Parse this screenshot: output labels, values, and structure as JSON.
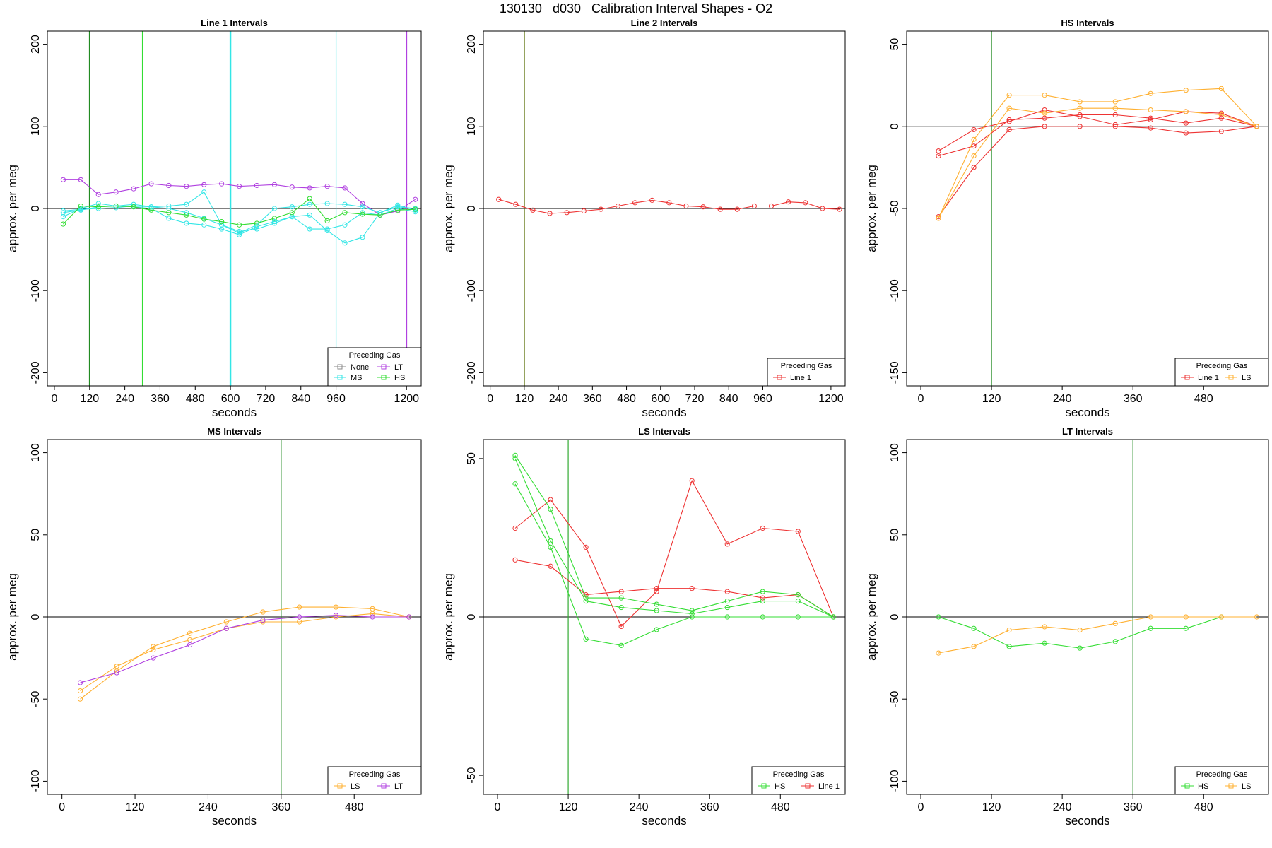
{
  "figure": {
    "title": "130130   d030   Calibration Interval Shapes - O2"
  },
  "chart_data": [
    {
      "type": "line",
      "title": "Line 1 Intervals",
      "xlabel": "seconds",
      "ylabel": "approx. per meg",
      "xlim": [
        -24,
        1250
      ],
      "ylim": [
        -216,
        216
      ],
      "xticks": [
        0,
        120,
        240,
        360,
        480,
        600,
        720,
        840,
        960,
        1200
      ],
      "xtick_labels": [
        "0",
        "120",
        "240",
        "360",
        "480",
        "600",
        "720",
        "840",
        "960",
        "1200"
      ],
      "yticks": [
        -200,
        -100,
        0,
        100,
        200
      ],
      "ytick_labels": [
        "-200",
        "-100",
        "0",
        "100",
        "200"
      ],
      "vlines": [
        {
          "x": 120,
          "color": "#228b22",
          "width": 1.8
        },
        {
          "x": 300,
          "color": "#33dd33",
          "width": 1.2
        },
        {
          "x": 600,
          "color": "#33e6e6",
          "width": 2.4
        },
        {
          "x": 960,
          "color": "#33e6e6",
          "width": 1.2
        },
        {
          "x": 1200,
          "color": "#b040e0",
          "width": 1.8
        }
      ],
      "legend": {
        "title": "Preceding Gas",
        "position": "bottom-right",
        "columns": 2,
        "entries": [
          {
            "label": "None",
            "color": "#888888"
          },
          {
            "label": "LT",
            "color": "#b040e0"
          },
          {
            "label": "MS",
            "color": "#33e6e6"
          },
          {
            "label": "HS",
            "color": "#33dd33"
          }
        ]
      },
      "series": [
        {
          "color": "#b040e0",
          "x": [
            30,
            90,
            150,
            210,
            270,
            330,
            390,
            450,
            510,
            570,
            630,
            690,
            750,
            810,
            870,
            930,
            990,
            1050,
            1110,
            1170,
            1230
          ],
          "y": [
            35,
            35,
            17,
            20,
            24,
            30,
            28,
            27,
            29,
            30,
            27,
            28,
            29,
            26,
            25,
            27,
            25,
            6,
            -8,
            -3,
            11
          ]
        },
        {
          "color": "#33e6e6",
          "x": [
            30,
            90,
            150,
            210,
            270,
            330,
            390,
            450,
            510,
            570,
            630,
            690,
            750,
            810,
            870,
            930,
            990,
            1050,
            1110,
            1170,
            1230
          ],
          "y": [
            -10,
            0,
            6,
            3,
            5,
            2,
            3,
            5,
            20,
            -20,
            -30,
            -20,
            0,
            2,
            5,
            6,
            5,
            2,
            -5,
            4,
            -2
          ]
        },
        {
          "color": "#33e6e6",
          "x": [
            30,
            90,
            150,
            210,
            270,
            330,
            390,
            450,
            510,
            570,
            630,
            690,
            750,
            810,
            870,
            930,
            990,
            1050,
            1110,
            1170,
            1230
          ],
          "y": [
            -5,
            -2,
            2,
            3,
            2,
            0,
            -12,
            -18,
            -20,
            -25,
            -32,
            -22,
            -16,
            -10,
            -8,
            -27,
            -42,
            -35,
            -5,
            2,
            0
          ]
        },
        {
          "color": "#33e6e6",
          "x": [
            30,
            90,
            150,
            210,
            270,
            330,
            390,
            450,
            510,
            570,
            630,
            690,
            750,
            810,
            870,
            930,
            990,
            1050,
            1110,
            1170,
            1230
          ],
          "y": [
            -3,
            -1,
            0,
            1,
            3,
            2,
            0,
            -5,
            -12,
            -20,
            -28,
            -25,
            -18,
            -10,
            -25,
            -25,
            -20,
            -5,
            -8,
            0,
            -4
          ]
        },
        {
          "color": "#33dd33",
          "x": [
            30,
            90,
            150,
            210,
            270,
            330,
            390,
            450,
            510,
            570,
            630,
            690,
            750,
            810,
            870,
            930,
            990,
            1050,
            1110,
            1170,
            1230
          ],
          "y": [
            -19,
            3,
            2,
            3,
            2,
            -2,
            -5,
            -8,
            -13,
            -16,
            -20,
            -18,
            -12,
            -5,
            12,
            -15,
            -5,
            -7,
            -8,
            -2,
            -1
          ]
        }
      ]
    },
    {
      "type": "line",
      "title": "Line 2 Intervals",
      "xlabel": "seconds",
      "ylabel": "approx. per meg",
      "xlim": [
        -24,
        1250
      ],
      "ylim": [
        -216,
        216
      ],
      "xticks": [
        0,
        120,
        240,
        360,
        480,
        600,
        720,
        840,
        960,
        1200
      ],
      "xtick_labels": [
        "0",
        "120",
        "240",
        "360",
        "480",
        "600",
        "720",
        "840",
        "960",
        "1200"
      ],
      "yticks": [
        -200,
        -100,
        0,
        100,
        200
      ],
      "ytick_labels": [
        "-200",
        "-100",
        "0",
        "100",
        "200"
      ],
      "vlines": [
        {
          "x": 120,
          "color": "#556b00",
          "width": 1.5
        }
      ],
      "legend": {
        "title": "Preceding Gas",
        "position": "bottom-right",
        "columns": 1,
        "entries": [
          {
            "label": "Line 1",
            "color": "#ee3333"
          }
        ]
      },
      "series": [
        {
          "color": "#ee3333",
          "x": [
            30,
            90,
            150,
            210,
            270,
            330,
            390,
            450,
            510,
            570,
            630,
            690,
            750,
            810,
            870,
            930,
            990,
            1050,
            1110,
            1170,
            1230
          ],
          "y": [
            11,
            5,
            -2,
            -6,
            -5,
            -3,
            -1,
            3,
            7,
            10,
            7,
            3,
            2,
            -1,
            -1,
            3,
            3,
            8,
            7,
            0,
            -1
          ]
        }
      ]
    },
    {
      "type": "line",
      "title": "HS Intervals",
      "xlabel": "seconds",
      "ylabel": "approx. per meg",
      "xlim": [
        -24,
        590
      ],
      "ylim": [
        -158,
        58
      ],
      "xticks": [
        0,
        120,
        240,
        360,
        480
      ],
      "xtick_labels": [
        "0",
        "120",
        "240",
        "360",
        "480"
      ],
      "yticks": [
        -150,
        -100,
        -50,
        0,
        50
      ],
      "ytick_labels": [
        "-150",
        "-100",
        "-50",
        "0",
        "50"
      ],
      "vlines": [
        {
          "x": 120,
          "color": "#228b22",
          "width": 1.2
        }
      ],
      "legend": {
        "title": "Preceding Gas",
        "position": "bottom-right",
        "columns": 2,
        "entries": [
          {
            "label": "Line 1",
            "color": "#ee3333"
          },
          {
            "label": "LS",
            "color": "#ffb030"
          }
        ]
      },
      "series": [
        {
          "color": "#ee3333",
          "x": [
            30,
            90,
            150,
            210,
            270,
            330,
            390,
            450,
            510,
            570
          ],
          "y": [
            -15,
            -2,
            3,
            10,
            6,
            1,
            4,
            9,
            8,
            0
          ]
        },
        {
          "color": "#ee3333",
          "x": [
            30,
            90,
            150,
            210,
            270,
            330,
            390,
            450,
            510,
            570
          ],
          "y": [
            -18,
            -12,
            4,
            5,
            7,
            7,
            5,
            2,
            5,
            0
          ]
        },
        {
          "color": "#ee3333",
          "x": [
            30,
            90,
            150,
            210,
            270,
            330,
            390,
            450,
            510,
            570
          ],
          "y": [
            -55,
            -25,
            -2,
            0,
            0,
            0,
            -1,
            -4,
            -3,
            0
          ]
        },
        {
          "color": "#ffb030",
          "x": [
            30,
            90,
            150,
            210,
            270,
            330,
            390,
            450,
            510,
            570
          ],
          "y": [
            -56,
            -8,
            19,
            19,
            15,
            15,
            20,
            22,
            23,
            0
          ]
        },
        {
          "color": "#ffb030",
          "x": [
            30,
            90,
            150,
            210,
            270,
            330,
            390,
            450,
            510,
            570
          ],
          "y": [
            -56,
            -18,
            11,
            8,
            11,
            11,
            10,
            9,
            7,
            0
          ]
        }
      ]
    },
    {
      "type": "line",
      "title": "MS Intervals",
      "xlabel": "seconds",
      "ylabel": "approx. per meg",
      "xlim": [
        -24,
        590
      ],
      "ylim": [
        -108,
        108
      ],
      "xticks": [
        0,
        120,
        240,
        360,
        480
      ],
      "xtick_labels": [
        "0",
        "120",
        "240",
        "360",
        "480"
      ],
      "yticks": [
        -100,
        -50,
        0,
        50,
        100
      ],
      "ytick_labels": [
        "-100",
        "-50",
        "0",
        "50",
        "100"
      ],
      "vlines": [
        {
          "x": 360,
          "color": "#228b22",
          "width": 1.2
        }
      ],
      "legend": {
        "title": "Preceding Gas",
        "position": "bottom-right",
        "columns": 2,
        "entries": [
          {
            "label": "LS",
            "color": "#ffb030"
          },
          {
            "label": "LT",
            "color": "#b040e0"
          }
        ]
      },
      "series": [
        {
          "color": "#ffb030",
          "x": [
            30,
            90,
            150,
            210,
            270,
            330,
            390,
            450,
            510,
            570
          ],
          "y": [
            -50,
            -33,
            -18,
            -10,
            -3,
            3,
            6,
            6,
            5,
            0
          ]
        },
        {
          "color": "#ffb030",
          "x": [
            30,
            90,
            150,
            210,
            270,
            330,
            390,
            450,
            510,
            570
          ],
          "y": [
            -45,
            -30,
            -20,
            -14,
            -7,
            -3,
            -3,
            0,
            2,
            0
          ]
        },
        {
          "color": "#b040e0",
          "x": [
            30,
            90,
            150,
            210,
            270,
            330,
            390,
            450,
            510,
            570
          ],
          "y": [
            -40,
            -34,
            -25,
            -17,
            -7,
            -2,
            0,
            1,
            0,
            0
          ]
        }
      ]
    },
    {
      "type": "line",
      "title": "LS Intervals",
      "xlabel": "seconds",
      "ylabel": "approx. per meg",
      "xlim": [
        -24,
        590
      ],
      "ylim": [
        -56,
        56
      ],
      "xticks": [
        0,
        120,
        240,
        360,
        480
      ],
      "xtick_labels": [
        "0",
        "120",
        "240",
        "360",
        "480"
      ],
      "yticks": [
        -50,
        0,
        50
      ],
      "ytick_labels": [
        "-50",
        "0",
        "50"
      ],
      "vlines": [
        {
          "x": 120,
          "color": "#33aa33",
          "width": 1.2
        }
      ],
      "legend": {
        "title": "Preceding Gas",
        "position": "bottom-right",
        "columns": 2,
        "entries": [
          {
            "label": "HS",
            "color": "#33dd33"
          },
          {
            "label": "Line 1",
            "color": "#ee3333"
          }
        ]
      },
      "series": [
        {
          "color": "#ee3333",
          "x": [
            30,
            90,
            150,
            210,
            270,
            330,
            390,
            450,
            510,
            570
          ],
          "y": [
            28,
            37,
            22,
            -3,
            8,
            43,
            23,
            28,
            27,
            0
          ]
        },
        {
          "color": "#ee3333",
          "x": [
            30,
            90,
            150,
            210,
            270,
            330,
            390,
            450,
            510,
            570
          ],
          "y": [
            18,
            16,
            7,
            8,
            9,
            9,
            8,
            6,
            7,
            0
          ]
        },
        {
          "color": "#33dd33",
          "x": [
            30,
            90,
            150,
            210,
            270,
            330,
            390,
            450,
            510,
            570
          ],
          "y": [
            51,
            34,
            6,
            6,
            4,
            2,
            5,
            8,
            7,
            0
          ]
        },
        {
          "color": "#33dd33",
          "x": [
            30,
            90,
            150,
            210,
            270,
            330,
            390,
            450,
            510,
            570
          ],
          "y": [
            50,
            24,
            5,
            3,
            2,
            1,
            3,
            5,
            5,
            0
          ]
        },
        {
          "color": "#33dd33",
          "x": [
            30,
            90,
            150,
            210,
            270,
            330,
            390,
            450,
            510,
            570
          ],
          "y": [
            42,
            22,
            -7,
            -9,
            -4,
            0,
            0,
            0,
            0,
            0
          ]
        }
      ]
    },
    {
      "type": "line",
      "title": "LT Intervals",
      "xlabel": "seconds",
      "ylabel": "approx. per meg",
      "xlim": [
        -24,
        590
      ],
      "ylim": [
        -108,
        108
      ],
      "xticks": [
        0,
        120,
        240,
        360,
        480
      ],
      "xtick_labels": [
        "0",
        "120",
        "240",
        "360",
        "480"
      ],
      "yticks": [
        -100,
        -50,
        0,
        50,
        100
      ],
      "ytick_labels": [
        "-100",
        "-50",
        "0",
        "50",
        "100"
      ],
      "vlines": [
        {
          "x": 360,
          "color": "#228b22",
          "width": 1.2
        }
      ],
      "legend": {
        "title": "Preceding Gas",
        "position": "bottom-right",
        "columns": 2,
        "entries": [
          {
            "label": "HS",
            "color": "#33dd33"
          },
          {
            "label": "LS",
            "color": "#ffb030"
          }
        ]
      },
      "series": [
        {
          "color": "#33dd33",
          "x": [
            30,
            90,
            150,
            210,
            270,
            330,
            390,
            450,
            510
          ],
          "y": [
            0,
            -7,
            -18,
            -16,
            -19,
            -15,
            -7,
            -7,
            0
          ]
        },
        {
          "color": "#ffb030",
          "x": [
            30,
            90,
            150,
            210,
            270,
            330,
            390,
            450,
            510,
            570
          ],
          "y": [
            -22,
            -18,
            -8,
            -6,
            -8,
            -4,
            0,
            0,
            0,
            0
          ]
        }
      ]
    }
  ]
}
